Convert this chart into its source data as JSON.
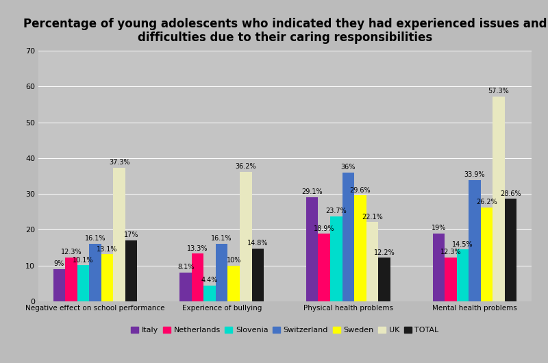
{
  "title": "Percentage of young adolescents who indicated they had experienced issues and\ndifficulties due to their caring responsibilities",
  "categories": [
    "Negative effect on school performance",
    "Experience of bullying",
    "Physical health problems",
    "Mental health problems"
  ],
  "series": {
    "Italy": [
      9.0,
      8.1,
      29.1,
      19.0
    ],
    "Netherlands": [
      12.3,
      13.3,
      18.9,
      12.3
    ],
    "Slovenia": [
      10.1,
      4.4,
      23.7,
      14.5
    ],
    "Switzerland": [
      16.1,
      16.1,
      36.0,
      33.9
    ],
    "Sweden": [
      13.1,
      10.0,
      29.6,
      26.2
    ],
    "UK": [
      37.3,
      36.2,
      22.1,
      57.3
    ],
    "TOTAL": [
      17.0,
      14.8,
      12.2,
      28.6
    ]
  },
  "labels": {
    "Italy": [
      "9%",
      "8.1%",
      "29.1%",
      "19%"
    ],
    "Netherlands": [
      "12.3%",
      "13.3%",
      "18.9%",
      "12.3%"
    ],
    "Slovenia": [
      "10.1%",
      "4.4%",
      "23.7%",
      "14.5%"
    ],
    "Switzerland": [
      "16.1%",
      "16.1%",
      "36%",
      "33.9%"
    ],
    "Sweden": [
      "13.1%",
      "10%",
      "29.6%",
      "26.2%"
    ],
    "UK": [
      "37.3%",
      "36.2%",
      "22.1%",
      "57.3%"
    ],
    "TOTAL": [
      "17%",
      "14.8%",
      "12.2%",
      "28.6%"
    ]
  },
  "colors": {
    "Italy": "#7030A0",
    "Netherlands": "#FF0066",
    "Slovenia": "#00DDCC",
    "Switzerland": "#4472C4",
    "Sweden": "#FFFF00",
    "UK": "#E8E8C0",
    "TOTAL": "#1A1A1A"
  },
  "ylim": [
    0,
    70
  ],
  "yticks": [
    0,
    10,
    20,
    30,
    40,
    50,
    60,
    70
  ],
  "background_color": "#BBBBBB",
  "plot_bg_color": "#C4C4C4",
  "title_fontsize": 12,
  "bar_label_fontsize": 7,
  "legend_fontsize": 8,
  "axis_label_fontsize": 7.5
}
